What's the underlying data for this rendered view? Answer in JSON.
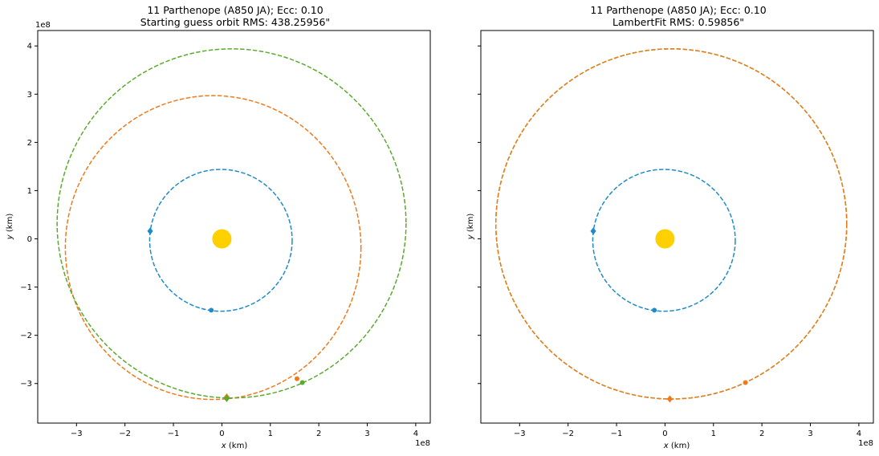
{
  "chart_data": [
    {
      "type": "scatter",
      "title_line1": "11 Parthenope (A850 JA); Ecc: 0.10",
      "title_line2": "Starting guess orbit RMS: 438.25956\"",
      "xlabel_var": "x",
      "xlabel_unit": " (km)",
      "ylabel_var": "y",
      "ylabel_unit": " (km)",
      "offset_text": "1e8",
      "xlim": [
        -3.8,
        4.3
      ],
      "ylim": [
        -3.82,
        4.32
      ],
      "x_ticks": [
        -3,
        -2,
        -1,
        0,
        1,
        2,
        3,
        4
      ],
      "y_ticks": [
        -3,
        -2,
        -1,
        0,
        1,
        2,
        3,
        4
      ],
      "x_tick_labels": [
        "−3",
        "−2",
        "−1",
        "0",
        "1",
        "2",
        "3",
        "4"
      ],
      "y_tick_labels": [
        "−3",
        "−2",
        "−1",
        "0",
        "1",
        "2",
        "3",
        "4"
      ],
      "grid": false,
      "sun": {
        "x": 0,
        "y": 0,
        "color": "#ffd000"
      },
      "orbits": [
        {
          "cx": -0.02,
          "cy": -0.03,
          "rx": 1.47,
          "ry": 1.47,
          "color": "#1f8bc9"
        },
        {
          "cx": -0.18,
          "cy": -0.18,
          "rx": 3.05,
          "ry": 3.15,
          "color": "#ef7a1c"
        },
        {
          "cx": 0.2,
          "cy": 0.32,
          "rx": 3.6,
          "ry": 3.62,
          "color": "#5aaa2d"
        }
      ],
      "points": [
        {
          "x": -1.48,
          "y": 0.16,
          "marker": "diamond",
          "color": "#1f8bc9"
        },
        {
          "x": -0.22,
          "y": -1.48,
          "marker": "dot",
          "color": "#1f8bc9"
        },
        {
          "x": 0.1,
          "y": -3.28,
          "marker": "diamond",
          "color": "#ef7a1c"
        },
        {
          "x": 1.55,
          "y": -2.9,
          "marker": "dot",
          "color": "#ef7a1c"
        },
        {
          "x": 0.1,
          "y": -3.31,
          "marker": "diamond",
          "color": "#5aaa2d"
        },
        {
          "x": 1.66,
          "y": -2.98,
          "marker": "dot",
          "color": "#5aaa2d"
        }
      ]
    },
    {
      "type": "scatter",
      "title_line1": "11 Parthenope (A850 JA); Ecc: 0.10",
      "title_line2": "LambertFit RMS: 0.59856\"",
      "xlabel_var": "x",
      "xlabel_unit": " (km)",
      "ylabel_var": "y",
      "ylabel_unit": " (km)",
      "offset_text": "1e8",
      "xlim": [
        -3.8,
        4.3
      ],
      "ylim": [
        -3.82,
        4.32
      ],
      "x_ticks": [
        -3,
        -2,
        -1,
        0,
        1,
        2,
        3,
        4
      ],
      "y_ticks": [
        -3,
        -2,
        -1,
        0,
        1,
        2,
        3,
        4
      ],
      "x_tick_labels": [
        "−3",
        "−2",
        "−1",
        "0",
        "1",
        "2",
        "3",
        "4"
      ],
      "grid": false,
      "sun": {
        "x": 0,
        "y": 0,
        "color": "#ffd000"
      },
      "orbits": [
        {
          "cx": -0.02,
          "cy": -0.03,
          "rx": 1.47,
          "ry": 1.47,
          "color": "#1f8bc9"
        },
        {
          "cx": 0.13,
          "cy": 0.31,
          "rx": 3.62,
          "ry": 3.63,
          "color": "#5aaa2d"
        },
        {
          "cx": 0.13,
          "cy": 0.31,
          "rx": 3.62,
          "ry": 3.63,
          "color": "#ef7a1c"
        }
      ],
      "points": [
        {
          "x": -1.48,
          "y": 0.16,
          "marker": "diamond",
          "color": "#1f8bc9"
        },
        {
          "x": -0.22,
          "y": -1.48,
          "marker": "dot",
          "color": "#1f8bc9"
        },
        {
          "x": 0.1,
          "y": -3.32,
          "marker": "diamond",
          "color": "#ef7a1c"
        },
        {
          "x": 1.66,
          "y": -2.98,
          "marker": "dot",
          "color": "#ef7a1c"
        }
      ]
    }
  ]
}
